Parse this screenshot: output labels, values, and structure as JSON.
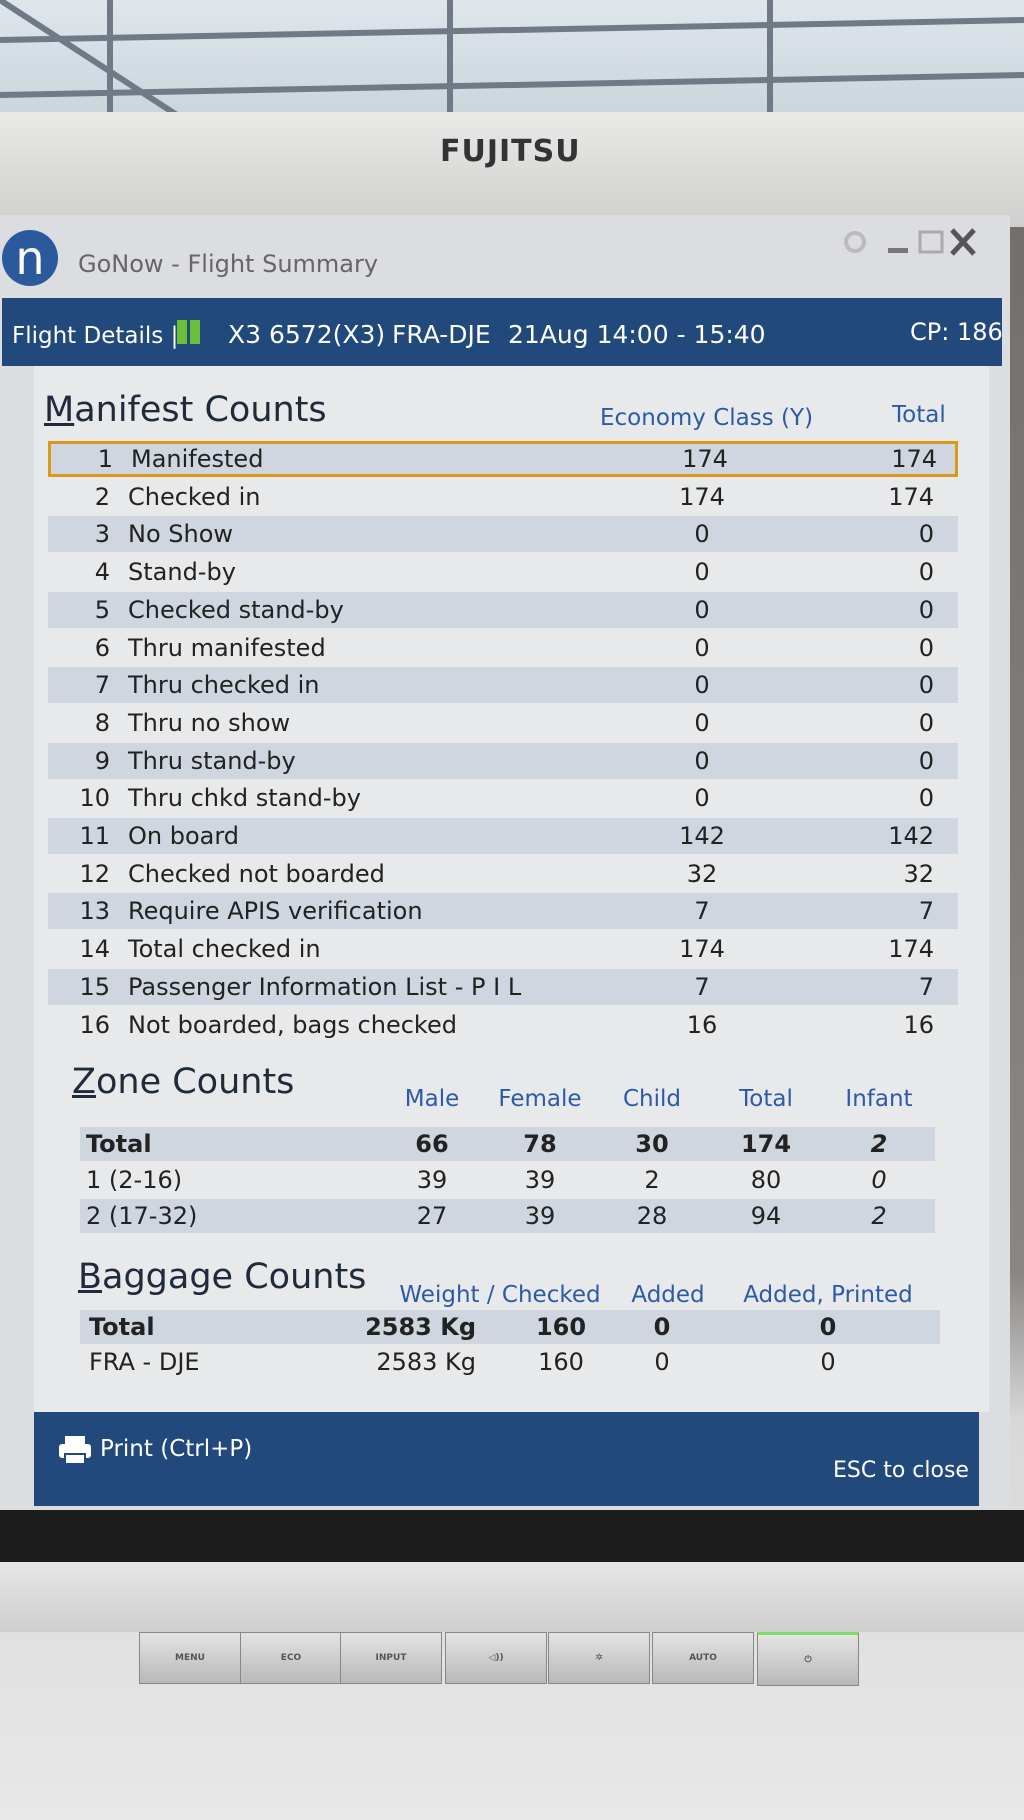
{
  "monitor": {
    "brand": "FUJITSU",
    "buttons": [
      "MENU",
      "ECO",
      "INPUT",
      "AUTO"
    ]
  },
  "window": {
    "logo": "n",
    "title": "GoNow - Flight Summary"
  },
  "header": {
    "label": "Flight Details |",
    "flight": "X3 6572(X3)",
    "route": "FRA-DJE",
    "time": "21Aug 14:00 - 15:40",
    "cp": "CP: 186"
  },
  "manifest": {
    "title": "Manifest Counts",
    "columns": [
      "Economy Class (Y)",
      "Total"
    ],
    "rows": [
      [
        1,
        "Manifested",
        174,
        174
      ],
      [
        2,
        "Checked in",
        174,
        174
      ],
      [
        3,
        "No Show",
        0,
        0
      ],
      [
        4,
        "Stand-by",
        0,
        0
      ],
      [
        5,
        "Checked stand-by",
        0,
        0
      ],
      [
        6,
        "Thru manifested",
        0,
        0
      ],
      [
        7,
        "Thru checked in",
        0,
        0
      ],
      [
        8,
        "Thru no show",
        0,
        0
      ],
      [
        9,
        "Thru stand-by",
        0,
        0
      ],
      [
        10,
        "Thru chkd stand-by",
        0,
        0
      ],
      [
        11,
        "On board",
        142,
        142
      ],
      [
        12,
        "Checked not boarded",
        32,
        32
      ],
      [
        13,
        "Require APIS verification",
        7,
        7
      ],
      [
        14,
        "Total checked in",
        174,
        174
      ],
      [
        15,
        "Passenger Information List - P I L",
        7,
        7
      ],
      [
        16,
        "Not boarded, bags checked",
        16,
        16
      ]
    ]
  },
  "zone": {
    "title": "Zone Counts",
    "columns": [
      "Male",
      "Female",
      "Child",
      "Total",
      "Infant"
    ],
    "rows": [
      [
        "Total",
        66,
        78,
        30,
        174,
        2
      ],
      [
        "1 (2-16)",
        39,
        39,
        2,
        80,
        0
      ],
      [
        "2 (17-32)",
        27,
        39,
        28,
        94,
        2
      ]
    ]
  },
  "baggage": {
    "title": "Baggage Counts",
    "columns": [
      "Weight / Checked",
      "Added",
      "Added, Printed"
    ],
    "rows": [
      [
        "Total",
        "2583 Kg",
        160,
        0,
        0
      ],
      [
        "FRA - DJE",
        "2583 Kg",
        160,
        0,
        0
      ]
    ]
  },
  "footer": {
    "print": "Print (Ctrl+P)",
    "close": "ESC to close"
  }
}
